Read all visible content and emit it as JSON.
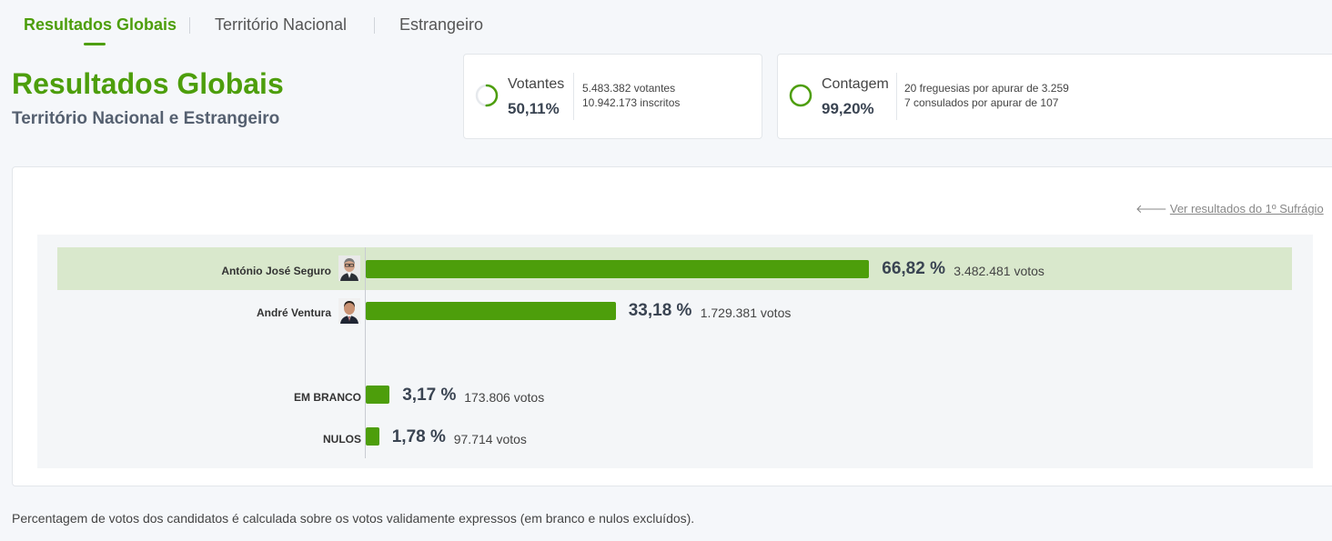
{
  "tabs": [
    {
      "label": "Resultados Globais",
      "active": true
    },
    {
      "label": "Território Nacional",
      "active": false
    },
    {
      "label": "Estrangeiro",
      "active": false
    }
  ],
  "header": {
    "title": "Resultados Globais",
    "subtitle": "Território Nacional e Estrangeiro"
  },
  "votantes": {
    "label": "Votantes",
    "percent": "50,11%",
    "progress": 0.5011,
    "votantes_text": "5.483.382 votantes",
    "inscritos_text": "10.942.173 inscritos"
  },
  "contagem": {
    "label": "Contagem",
    "percent": "99,20%",
    "progress": 0.992,
    "freguesias_text": "20 freguesias por apurar de 3.259",
    "consulados_text": "7 consulados por apurar de 107"
  },
  "results": {
    "prev_link": "Ver resultados do 1º Sufrágio",
    "candidates": [
      {
        "name": "António José Seguro",
        "percent_label": "66,82 %",
        "percent": 66.82,
        "votes": "3.482.481 votos",
        "highlighted": true
      },
      {
        "name": "André Ventura",
        "percent_label": "33,18 %",
        "percent": 33.18,
        "votes": "1.729.381 votos",
        "highlighted": false
      }
    ],
    "others": [
      {
        "name": "EM BRANCO",
        "percent_label": "3,17 %",
        "percent": 3.17,
        "votes": "173.806 votos"
      },
      {
        "name": "NULOS",
        "percent_label": "1,78 %",
        "percent": 1.78,
        "votes": "97.714 votos"
      }
    ]
  },
  "footnote": "Percentagem de votos dos candidatos é calculada sobre os votos validamente expressos (em branco e nulos excluídos).",
  "colors": {
    "accent": "#4d9e0b",
    "highlight_row": "#d9e8cc"
  }
}
